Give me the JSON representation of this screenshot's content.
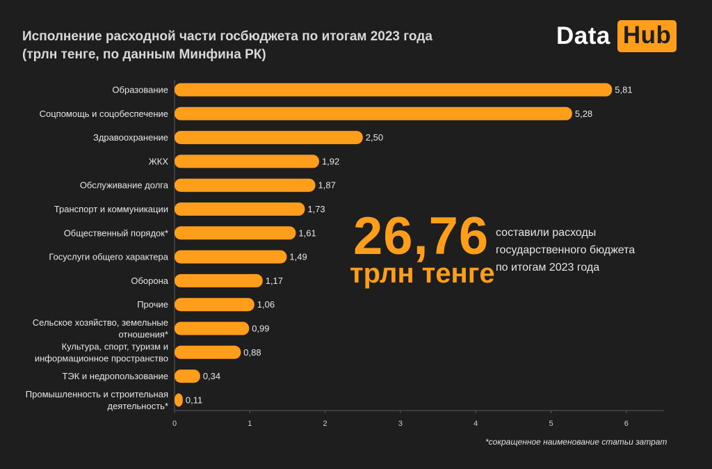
{
  "header": {
    "title_line1": "Исполнение расходной части госбюджета по итогам 2023 года",
    "title_line2": "(трлн тенге, по данным Минфина РК)"
  },
  "logo": {
    "word1": "Data",
    "word2": "Hub"
  },
  "callout": {
    "value": "26,76",
    "unit": "трлн тенге",
    "text_line1": "составили расходы",
    "text_line2": "государственного бюджета",
    "text_line3": "по итогам 2023 года"
  },
  "footnote": "*сокращенное наименование статьи затрат",
  "colors": {
    "background": "#1e1e1e",
    "bar": "#ff9e1a",
    "accent": "#ff9e1a",
    "text": "#e6e6e6"
  },
  "chart_data": {
    "type": "bar",
    "orientation": "horizontal",
    "title": "Исполнение расходной части госбюджета по итогам 2023 года",
    "subtitle": "(трлн тенге, по данным Минфина РК)",
    "categories": [
      "Образование",
      "Соцпомощь и соцобеспечение",
      "Здравоохранение",
      "ЖКХ",
      "Обслуживание долга",
      "Транспорт и коммуникации",
      "Общественный порядок*",
      "Госуслуги общего характера",
      "Оборона",
      "Прочие",
      "Сельское хозяйство, земельные отношения*",
      "Культура, спорт, туризм и информационное пространство",
      "ТЭК и недропользование",
      "Промышленность и строительная деятельность*"
    ],
    "category_lines": [
      [
        "Образование"
      ],
      [
        "Соцпомощь и соцобеспечение"
      ],
      [
        "Здравоохранение"
      ],
      [
        "ЖКХ"
      ],
      [
        "Обслуживание долга"
      ],
      [
        "Транспорт и коммуникации"
      ],
      [
        "Общественный порядок*"
      ],
      [
        "Госуслуги общего характера"
      ],
      [
        "Оборона"
      ],
      [
        "Прочие"
      ],
      [
        "Сельское хозяйство, земельные",
        "отношения*"
      ],
      [
        "Культура, спорт, туризм и",
        "информационное пространство"
      ],
      [
        "ТЭК и недропользование"
      ],
      [
        "Промышленность и строительная",
        "деятельность*"
      ]
    ],
    "values": [
      5.81,
      5.28,
      2.5,
      1.92,
      1.87,
      1.73,
      1.61,
      1.49,
      1.17,
      1.06,
      0.99,
      0.88,
      0.34,
      0.11
    ],
    "value_labels": [
      "5,81",
      "5,28",
      "2,50",
      "1,92",
      "1,87",
      "1,73",
      "1,61",
      "1,49",
      "1,17",
      "1,06",
      "0,99",
      "0,88",
      "0,34",
      "0,11"
    ],
    "x_ticks": [
      "0",
      "1",
      "2",
      "3",
      "4",
      "5",
      "6"
    ],
    "xlim": [
      0,
      6.5
    ],
    "xlabel": "",
    "ylabel": "",
    "grid": false,
    "legend": "none"
  }
}
